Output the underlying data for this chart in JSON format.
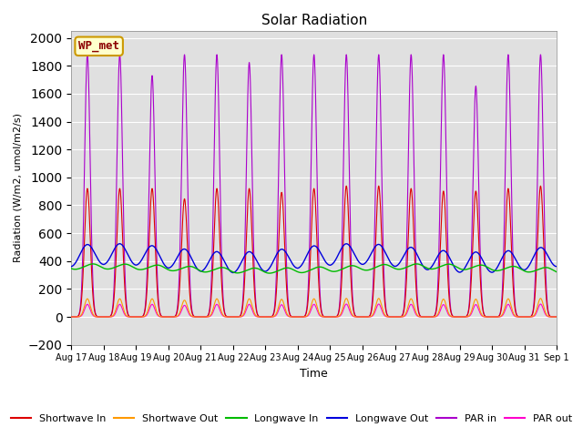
{
  "title": "Solar Radiation",
  "xlabel": "Time",
  "ylabel": "Radiation (W/m2, umol/m2/s)",
  "ylim": [
    -200,
    2050
  ],
  "yticks": [
    -200,
    0,
    200,
    400,
    600,
    800,
    1000,
    1200,
    1400,
    1600,
    1800,
    2000
  ],
  "num_days": 15,
  "points_per_day": 288,
  "shortwave_in_peak": 920,
  "shortwave_out_peak": 130,
  "longwave_in_base": 355,
  "longwave_in_amplitude": 25,
  "longwave_out_base": 400,
  "longwave_out_amplitude": 55,
  "par_in_peak": 1880,
  "par_out_peak": 100,
  "colors": {
    "shortwave_in": "#dd0000",
    "shortwave_out": "#ff9900",
    "longwave_in": "#00bb00",
    "longwave_out": "#0000dd",
    "par_in": "#aa00cc",
    "par_out": "#ff00cc"
  },
  "legend_labels": [
    "Shortwave In",
    "Shortwave Out",
    "Longwave In",
    "Longwave Out",
    "PAR in",
    "PAR out"
  ],
  "station_label": "WP_met",
  "background_color": "#e0e0e0",
  "fig_background": "#ffffff",
  "grid_color": "#ffffff",
  "date_labels": [
    "Aug 17",
    "Aug 18",
    "Aug 19",
    "Aug 20",
    "Aug 21",
    "Aug 22",
    "Aug 23",
    "Aug 24",
    "Aug 25",
    "Aug 26",
    "Aug 27",
    "Aug 28",
    "Aug 29",
    "Aug 30",
    "Aug 31",
    "Sep 1"
  ],
  "peak_scale_sw": [
    1.0,
    1.0,
    1.0,
    0.92,
    1.0,
    1.0,
    0.97,
    1.0,
    1.02,
    1.02,
    1.0,
    0.98,
    0.98,
    1.0,
    1.02
  ],
  "peak_scale_par": [
    1.0,
    1.0,
    0.92,
    1.0,
    1.0,
    0.97,
    1.0,
    1.0,
    1.0,
    1.0,
    1.0,
    1.0,
    0.88,
    1.0,
    1.0
  ]
}
